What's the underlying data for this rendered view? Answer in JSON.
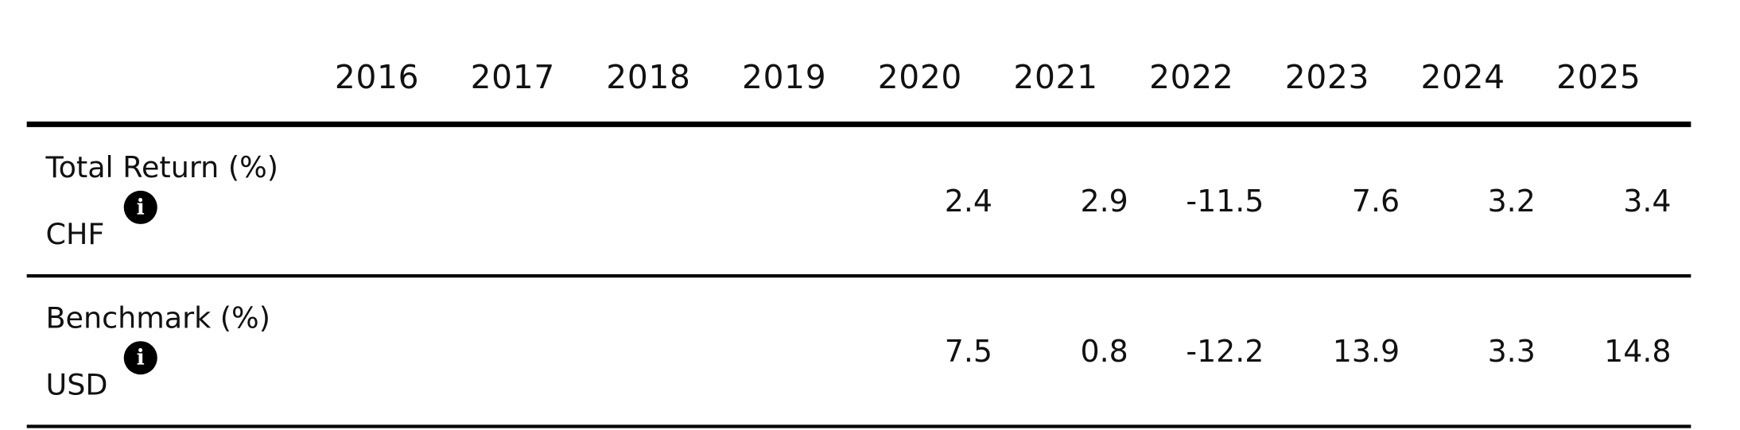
{
  "table": {
    "header": [
      "2016",
      "2017",
      "2018",
      "2019",
      "2020",
      "2021",
      "2022",
      "2023",
      "2024",
      "2025"
    ],
    "rows": [
      {
        "label": "Total Return (%)",
        "currency": "CHF",
        "values": [
          null,
          null,
          null,
          null,
          2.4,
          2.9,
          -11.5,
          7.6,
          3.2,
          3.4
        ]
      },
      {
        "label": "Benchmark (%)",
        "currency": "USD",
        "values": [
          null,
          null,
          null,
          null,
          7.5,
          0.8,
          -12.2,
          13.9,
          3.3,
          14.8
        ]
      }
    ]
  }
}
